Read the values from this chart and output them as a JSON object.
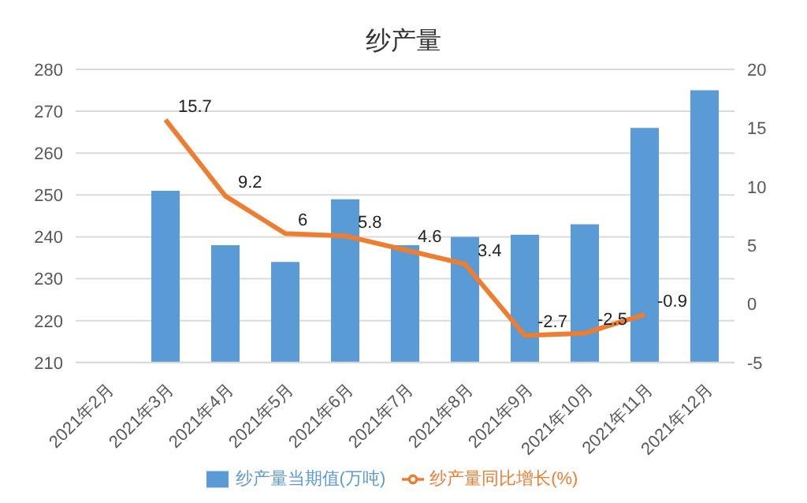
{
  "chart_data": {
    "type": "bar",
    "title": "纱产量",
    "categories": [
      "2021年2月",
      "2021年3月",
      "2021年4月",
      "2021年5月",
      "2021年6月",
      "2021年7月",
      "2021年8月",
      "2021年9月",
      "2021年10月",
      "2021年11月",
      "2021年12月"
    ],
    "series": [
      {
        "name": "纱产量当期值(万吨)",
        "color": "#5b9bd5",
        "values": [
          null,
          251,
          238,
          234,
          249,
          238,
          240,
          240.5,
          243,
          266,
          275
        ]
      },
      {
        "name": "纱产量同比增长(%)",
        "type": "line",
        "axis": "y2",
        "color": "#ed7d31",
        "values": [
          null,
          15.7,
          9.2,
          6,
          5.8,
          4.6,
          3.4,
          -2.7,
          -2.5,
          -0.9,
          null
        ],
        "value_labels": [
          null,
          "15.7",
          "9.2",
          "6",
          "5.8",
          "4.6",
          "3.4",
          "-2.7",
          "-2.5",
          "-0.9",
          null
        ]
      }
    ],
    "ylim": [
      210,
      280
    ],
    "yticks": [
      210,
      220,
      230,
      240,
      250,
      260,
      270,
      280
    ],
    "y2lim": [
      -5,
      20
    ],
    "y2ticks": [
      -5,
      0,
      5,
      10,
      15,
      20
    ],
    "grid": "y",
    "legend": "bottom",
    "marker": "none"
  }
}
